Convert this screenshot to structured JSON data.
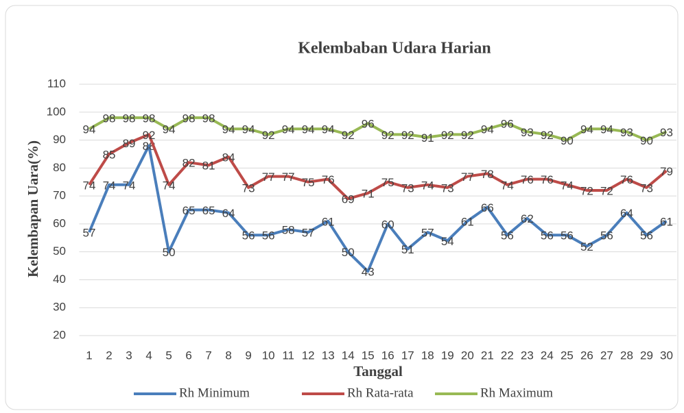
{
  "chart_data": {
    "type": "line",
    "title": "Kelembaban Udara Harian",
    "x_label": "Tanggal",
    "y_label": "Kelembapan Uara(%)",
    "categories": [
      "1",
      "2",
      "3",
      "4",
      "5",
      "6",
      "7",
      "8",
      "9",
      "10",
      "11",
      "12",
      "13",
      "14",
      "15",
      "16",
      "17",
      "18",
      "19",
      "20",
      "21",
      "22",
      "23",
      "24",
      "25",
      "26",
      "27",
      "28",
      "29",
      "30"
    ],
    "series": [
      {
        "name": "Rh Minimum",
        "color": "#4a7ebb",
        "values": [
          57,
          74,
          74,
          88,
          50,
          65,
          65,
          64,
          56,
          56,
          58,
          57,
          61,
          50,
          43,
          60,
          51,
          57,
          54,
          61,
          66,
          56,
          62,
          56,
          56,
          52,
          56,
          64,
          56,
          61
        ]
      },
      {
        "name": "Rh Rata-rata",
        "color": "#be4b48",
        "values": [
          74,
          85,
          89,
          92,
          74,
          82,
          81,
          84,
          73,
          77,
          77,
          75,
          76,
          69,
          71,
          75,
          73,
          74,
          73,
          77,
          78,
          74,
          76,
          76,
          74,
          72,
          72,
          76,
          73,
          79
        ]
      },
      {
        "name": "Rh Maximum",
        "color": "#98b954",
        "values": [
          94,
          98,
          98,
          98,
          94,
          98,
          98,
          94,
          94,
          92,
          94,
          94,
          94,
          92,
          96,
          92,
          92,
          91,
          92,
          92,
          94,
          96,
          93,
          92,
          90,
          94,
          94,
          93,
          90,
          93
        ]
      }
    ],
    "ylim": [
      20,
      110
    ],
    "yticks": [
      20,
      30,
      40,
      50,
      60,
      70,
      80,
      90,
      100,
      110
    ],
    "grid": true,
    "legend": "bottom"
  }
}
